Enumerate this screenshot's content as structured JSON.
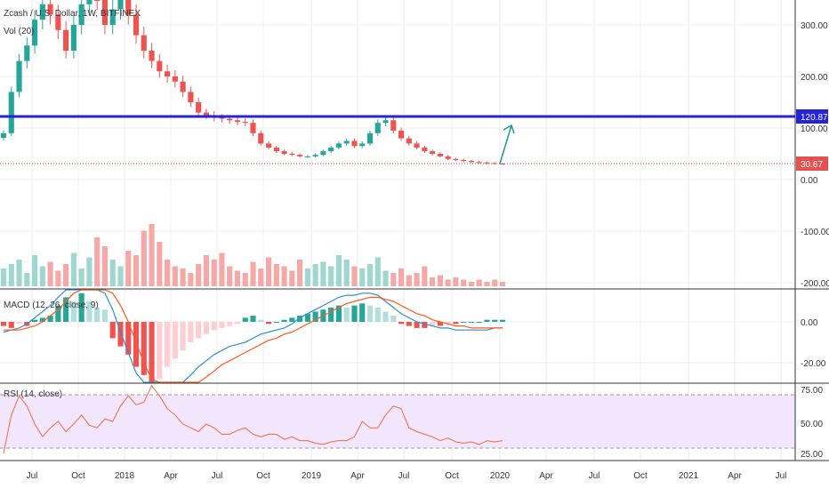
{
  "chart_data": {
    "type": "candlestick",
    "symbol_label": "Zcash / U.S. Dollar, 1W, BITFINEX",
    "volume_label": "Vol (20)",
    "macd_label": "MACD (12, 26, close, 9)",
    "rsi_label": "RSI (14, close)",
    "price_ticks": [
      "300.00",
      "200.00",
      "100.00",
      "0.00",
      "-100.00",
      "-200.00"
    ],
    "macd_ticks": [
      "0.00",
      "-20.00"
    ],
    "rsi_ticks": [
      "75.00",
      "50.00",
      "25.00"
    ],
    "x_ticks": [
      "Jul",
      "Oct",
      "2018",
      "Apr",
      "Jul",
      "Oct",
      "2019",
      "Apr",
      "Jul",
      "Oct",
      "2020",
      "Apr",
      "Jul",
      "Oct",
      "2021",
      "Apr",
      "Jul"
    ],
    "resistance_level": 120.87,
    "resistance_label": "120.87",
    "last_price": 30.67,
    "last_price_label": "30.67",
    "price_path": [
      90,
      170,
      230,
      260,
      310,
      340,
      320,
      290,
      250,
      300,
      340,
      380,
      350,
      300,
      330,
      360,
      320,
      280,
      250,
      230,
      210,
      200,
      190,
      170,
      150,
      130,
      125,
      120,
      118,
      115,
      112,
      110,
      90,
      70,
      62,
      55,
      50,
      48,
      45,
      45,
      48,
      55,
      62,
      70,
      75,
      65,
      70,
      90,
      110,
      115,
      95,
      80,
      70,
      62,
      55,
      50,
      45,
      40,
      38,
      36,
      34,
      33,
      32,
      31,
      30.67
    ],
    "rsi_path": [
      25,
      55,
      70,
      62,
      48,
      38,
      45,
      50,
      42,
      48,
      55,
      47,
      45,
      52,
      50,
      62,
      70,
      63,
      65,
      78,
      70,
      60,
      55,
      48,
      45,
      42,
      48,
      45,
      40,
      40,
      43,
      45,
      40,
      38,
      40,
      40,
      36,
      38,
      35,
      35,
      33,
      32,
      34,
      35,
      35,
      38,
      50,
      45,
      45,
      55,
      62,
      60,
      45,
      42,
      40,
      38,
      35,
      37,
      34,
      33,
      34,
      32,
      35,
      34,
      35
    ],
    "macd_hist": [
      -2,
      -3,
      -1,
      -2,
      1,
      2,
      3,
      8,
      12,
      10,
      14,
      10,
      7,
      6,
      -8,
      -12,
      -16,
      -22,
      -26,
      -30,
      -28,
      -22,
      -18,
      -14,
      -10,
      -8,
      -6,
      -4,
      -3,
      -2,
      -1,
      2,
      3,
      1,
      -1,
      0,
      1,
      2,
      3,
      4,
      5,
      6,
      7,
      8,
      7,
      8,
      9,
      8,
      7,
      5,
      3,
      -1,
      -2,
      -3,
      -3,
      -2,
      -2,
      -1,
      -1,
      0,
      0,
      0,
      1,
      1,
      1
    ],
    "macd_line": [
      -5,
      -4,
      -3,
      -1,
      2,
      5,
      8,
      12,
      18,
      22,
      25,
      22,
      18,
      14,
      6,
      -5,
      -15,
      -25,
      -35,
      -40,
      -42,
      -38,
      -34,
      -30,
      -26,
      -22,
      -19,
      -16,
      -14,
      -12,
      -11,
      -10,
      -8,
      -6,
      -5,
      -4,
      -3,
      -1,
      2,
      4,
      6,
      8,
      10,
      12,
      13,
      13,
      14,
      14,
      13,
      10,
      7,
      4,
      2,
      0,
      -1,
      -2,
      -3,
      -3,
      -4,
      -4,
      -4,
      -4,
      -4,
      -3,
      -3
    ],
    "macd_signal": [
      -4,
      -4,
      -4,
      -3,
      -2,
      0,
      3,
      6,
      10,
      14,
      18,
      20,
      20,
      18,
      14,
      8,
      0,
      -10,
      -20,
      -28,
      -34,
      -37,
      -37,
      -35,
      -33,
      -30,
      -27,
      -24,
      -21,
      -19,
      -17,
      -15,
      -13,
      -11,
      -9,
      -8,
      -6,
      -5,
      -3,
      -1,
      1,
      3,
      5,
      7,
      9,
      10,
      11,
      12,
      12,
      11,
      10,
      8,
      6,
      4,
      3,
      1,
      0,
      -1,
      -2,
      -2,
      -3,
      -3,
      -3,
      -3,
      -3
    ],
    "volume": [
      8,
      10,
      12,
      6,
      14,
      9,
      11,
      7,
      10,
      15,
      8,
      13,
      22,
      18,
      12,
      9,
      16,
      14,
      25,
      28,
      20,
      12,
      9,
      8,
      6,
      10,
      14,
      12,
      15,
      9,
      7,
      6,
      11,
      8,
      13,
      10,
      9,
      7,
      12,
      8,
      10,
      11,
      9,
      14,
      12,
      9,
      8,
      10,
      13,
      7,
      6,
      8,
      5,
      6,
      9,
      4,
      5,
      3,
      4,
      3,
      2,
      3,
      2,
      3,
      2
    ]
  }
}
